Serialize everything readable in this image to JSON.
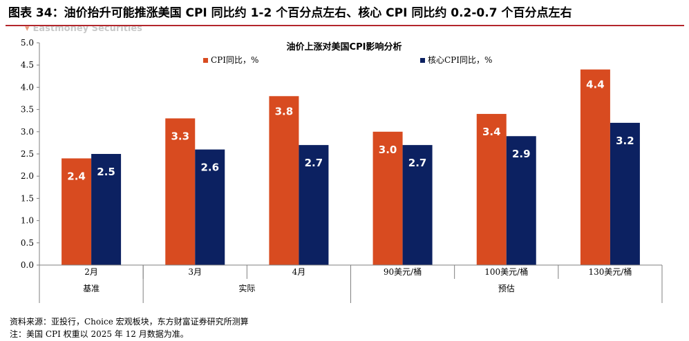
{
  "figure": {
    "title": "图表 34：油价抬升可能推涨美国 CPI 同比约 1-2 个百分点左右、核心 CPI 同比约 0.2-0.7 个百分点左右",
    "watermark": "Eastmoney Securities",
    "source": "资料来源：亚投行，Choice 宏观板块，东方财富证券研究所测算",
    "note": "注：美国 CPI 权重以 2025 年 12 月数据为准。"
  },
  "colors": {
    "title_rule": "#b3262b",
    "cpi": "#d84b20",
    "core": "#0c2161",
    "axis": "#7f7f7f"
  },
  "chart_data": {
    "type": "bar",
    "title": "油价上涨对美国CPI影响分析",
    "categories": [
      "2月",
      "3月",
      "4月",
      "90美元/桶",
      "100美元/桶",
      "130美元/桶"
    ],
    "groups": [
      {
        "label": "基准",
        "span": [
          0,
          0
        ]
      },
      {
        "label": "实际",
        "span": [
          1,
          2
        ]
      },
      {
        "label": "预估",
        "span": [
          3,
          5
        ]
      }
    ],
    "series": [
      {
        "name": "CPI同比，%",
        "values": [
          2.4,
          3.3,
          3.8,
          3.0,
          3.4,
          4.4
        ],
        "labels": [
          "2.4",
          "3.3",
          "3.8",
          "3.0",
          "3.4",
          "4.4"
        ],
        "color": "#d84b20"
      },
      {
        "name": "核心CPI同比，%",
        "values": [
          2.5,
          2.6,
          2.7,
          2.7,
          2.9,
          3.2
        ],
        "labels": [
          "2.5",
          "2.6",
          "2.7",
          "2.7",
          "2.9",
          "3.2"
        ],
        "color": "#0c2161"
      }
    ],
    "ylim": [
      0,
      5
    ],
    "yticks": [
      "0.0",
      "0.5",
      "1.0",
      "1.5",
      "2.0",
      "2.5",
      "3.0",
      "3.5",
      "4.0",
      "4.5",
      "5.0"
    ],
    "ytick_values": [
      0,
      0.5,
      1,
      1.5,
      2,
      2.5,
      3,
      3.5,
      4,
      4.5,
      5
    ],
    "legend_position": "top-center",
    "grid": false
  }
}
